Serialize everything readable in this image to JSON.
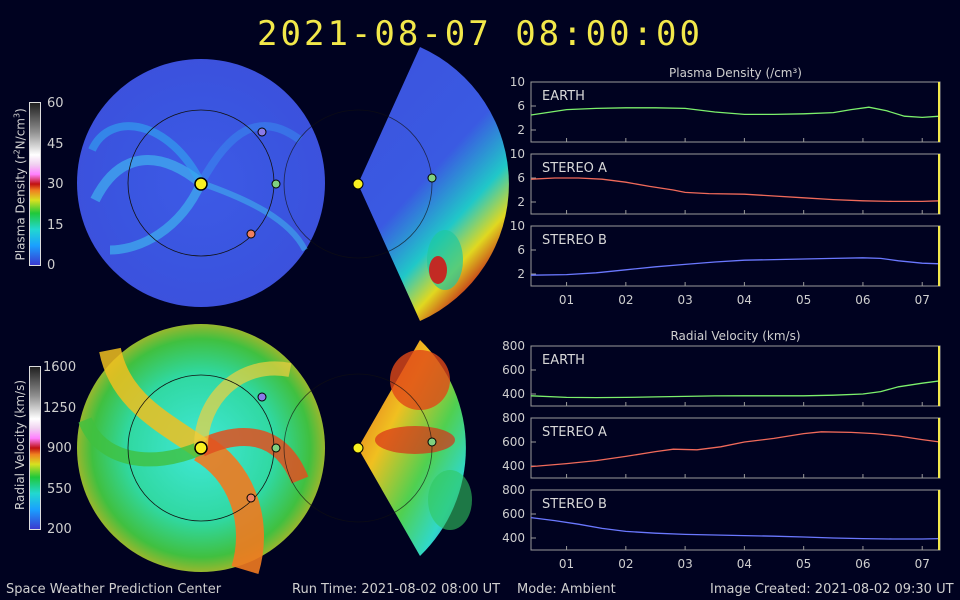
{
  "timestamp": "2021-08-07  08:00:00",
  "density_colorbar": {
    "label_main": "Plasma Density (r",
    "label_sup1": "2",
    "label_mid": "N/cm",
    "label_sup2": "3",
    "label_end": ")",
    "ticks": [
      "60",
      "45",
      "30",
      "15",
      "0"
    ]
  },
  "velocity_colorbar": {
    "label": "Radial Velocity (km/s)",
    "ticks": [
      "1600",
      "1250",
      "900",
      "550",
      "200"
    ]
  },
  "footer": {
    "center": "Space Weather Prediction Center",
    "run_time": "Run Time: 2021-08-02 08:00 UT",
    "mode": "Mode: Ambient",
    "created": "Image Created: 2021-08-02 09:30 UT"
  },
  "colors": {
    "background": "#000220",
    "earth": "#7cf06c",
    "stereo_a": "#f06a5a",
    "stereo_b": "#6a78ff",
    "timestamp": "#f2e84a",
    "cursor": "#f2e84a"
  },
  "chart_data": [
    {
      "type": "line",
      "title": "Plasma Density (/cm³)",
      "x_ticks": [
        "01",
        "02",
        "03",
        "04",
        "05",
        "06",
        "07"
      ],
      "xlim": [
        0.4,
        7.3
      ],
      "panels": [
        {
          "name": "EARTH",
          "ylim": [
            0,
            10
          ],
          "yticks": [
            2,
            6,
            10
          ],
          "x": [
            0.4,
            1.0,
            1.5,
            2.0,
            2.5,
            3.0,
            3.5,
            4.0,
            4.5,
            5.0,
            5.5,
            5.8,
            6.1,
            6.4,
            6.7,
            7.0,
            7.3
          ],
          "values": [
            4.5,
            5.4,
            5.6,
            5.7,
            5.7,
            5.6,
            5.0,
            4.6,
            4.6,
            4.7,
            4.9,
            5.4,
            5.8,
            5.2,
            4.3,
            4.1,
            4.3
          ]
        },
        {
          "name": "STEREO A",
          "ylim": [
            0,
            10
          ],
          "yticks": [
            2,
            6,
            10
          ],
          "x": [
            0.4,
            0.8,
            1.2,
            1.6,
            2.0,
            2.4,
            2.8,
            3.0,
            3.4,
            4.0,
            4.5,
            5.0,
            5.5,
            6.0,
            6.5,
            7.0,
            7.3
          ],
          "values": [
            5.8,
            6.0,
            6.0,
            5.8,
            5.3,
            4.6,
            4.0,
            3.6,
            3.4,
            3.3,
            3.0,
            2.7,
            2.4,
            2.2,
            2.1,
            2.1,
            2.2
          ]
        },
        {
          "name": "STEREO B",
          "ylim": [
            0,
            10
          ],
          "yticks": [
            2,
            6,
            10
          ],
          "x": [
            0.4,
            1.0,
            1.5,
            2.0,
            2.5,
            3.0,
            3.5,
            4.0,
            4.5,
            5.0,
            5.5,
            6.0,
            6.3,
            6.6,
            7.0,
            7.3
          ],
          "values": [
            1.8,
            1.9,
            2.2,
            2.7,
            3.2,
            3.6,
            4.0,
            4.3,
            4.4,
            4.5,
            4.6,
            4.7,
            4.6,
            4.2,
            3.8,
            3.7
          ]
        }
      ]
    },
    {
      "type": "line",
      "title": "Radial Velocity (km/s)",
      "x_ticks": [
        "01",
        "02",
        "03",
        "04",
        "05",
        "06",
        "07"
      ],
      "xlim": [
        0.4,
        7.3
      ],
      "panels": [
        {
          "name": "EARTH",
          "ylim": [
            300,
            800
          ],
          "yticks": [
            400,
            600,
            800
          ],
          "x": [
            0.4,
            1.0,
            1.5,
            2.0,
            2.5,
            3.0,
            3.5,
            4.0,
            4.5,
            5.0,
            5.5,
            6.0,
            6.3,
            6.6,
            7.0,
            7.3
          ],
          "values": [
            385,
            372,
            370,
            372,
            376,
            380,
            384,
            385,
            385,
            385,
            390,
            400,
            420,
            460,
            490,
            510
          ]
        },
        {
          "name": "STEREO A",
          "ylim": [
            300,
            800
          ],
          "yticks": [
            400,
            600,
            800
          ],
          "x": [
            0.4,
            1.0,
            1.5,
            2.0,
            2.5,
            2.8,
            3.2,
            3.6,
            4.0,
            4.5,
            5.0,
            5.3,
            5.8,
            6.2,
            6.6,
            7.0,
            7.3
          ],
          "values": [
            395,
            420,
            445,
            480,
            520,
            540,
            535,
            560,
            600,
            630,
            670,
            685,
            680,
            670,
            650,
            620,
            600
          ]
        },
        {
          "name": "STEREO B",
          "ylim": [
            300,
            800
          ],
          "yticks": [
            400,
            600,
            800
          ],
          "x": [
            0.4,
            0.8,
            1.2,
            1.6,
            2.0,
            2.5,
            3.0,
            3.5,
            4.0,
            4.5,
            5.0,
            5.5,
            6.0,
            6.5,
            7.0,
            7.3
          ],
          "values": [
            570,
            545,
            515,
            480,
            455,
            440,
            430,
            425,
            420,
            415,
            408,
            400,
            395,
            392,
            392,
            395
          ]
        }
      ]
    }
  ]
}
